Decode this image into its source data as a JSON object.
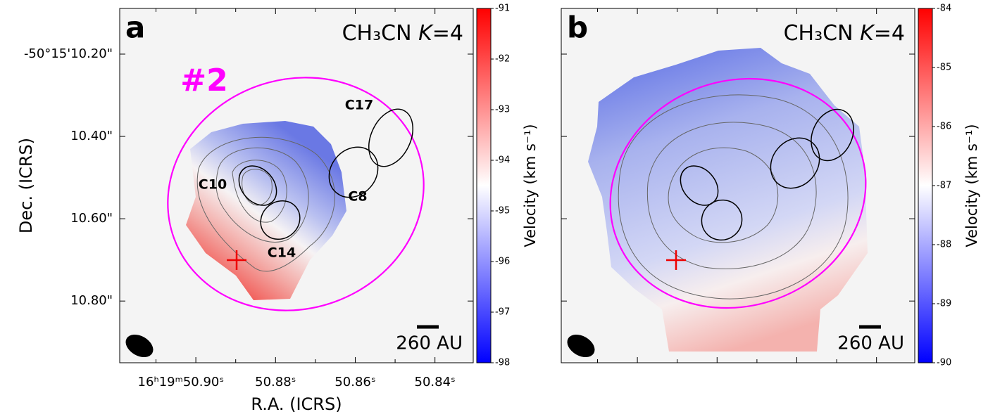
{
  "chart_data": [
    {
      "type": "velocity-map",
      "panel_label": "a",
      "title_parts": [
        "CH₃CN ",
        "K",
        "=4"
      ],
      "xlabel": "R.A. (ICRS)",
      "ylabel": "Dec. (ICRS)",
      "xlim": [
        50.9191,
        50.8304
      ],
      "xticks": [
        {
          "value": 50.9,
          "label": "16ʰ19ᵐ50.90ˢ"
        },
        {
          "value": 50.88,
          "label": "50.88ˢ"
        },
        {
          "value": 50.86,
          "label": "50.86ˢ"
        },
        {
          "value": 50.84,
          "label": "50.84ˢ"
        }
      ],
      "xminorticks": [
        50.91,
        50.89,
        50.87,
        50.85
      ],
      "ylim": [
        10.95,
        10.089
      ],
      "yticks": [
        {
          "value": 10.2,
          "label": "-50°15'10.20\""
        },
        {
          "value": 10.4,
          "label": "10.40\""
        },
        {
          "value": 10.6,
          "label": "10.60\""
        },
        {
          "value": 10.8,
          "label": "10.80\""
        }
      ],
      "colorbar_label": "Velocity (km s⁻¹)",
      "clim": [
        -98,
        -91
      ],
      "cticks": [
        -91,
        -92,
        -93,
        -94,
        -95,
        -96,
        -97,
        -98
      ],
      "region_label": "#2",
      "cores": [
        "C17",
        "C8",
        "C10",
        "C14"
      ],
      "scalebar": "260 AU"
    },
    {
      "type": "velocity-map",
      "panel_label": "b",
      "title_parts": [
        "CH₃CN ",
        "K",
        "=4"
      ],
      "xlim": [
        50.9191,
        50.8304
      ],
      "xticks": [
        50.9,
        50.88,
        50.86,
        50.84
      ],
      "xminorticks": [
        50.91,
        50.89,
        50.87,
        50.85
      ],
      "ylim": [
        10.95,
        10.089
      ],
      "yticks": [
        10.2,
        10.4,
        10.6,
        10.8
      ],
      "colorbar_label": "Velocity (km s⁻¹)",
      "clim": [
        -90,
        -84
      ],
      "cticks": [
        -84,
        -85,
        -86,
        -87,
        -88,
        -89,
        -90
      ],
      "scalebar": "260 AU"
    }
  ]
}
